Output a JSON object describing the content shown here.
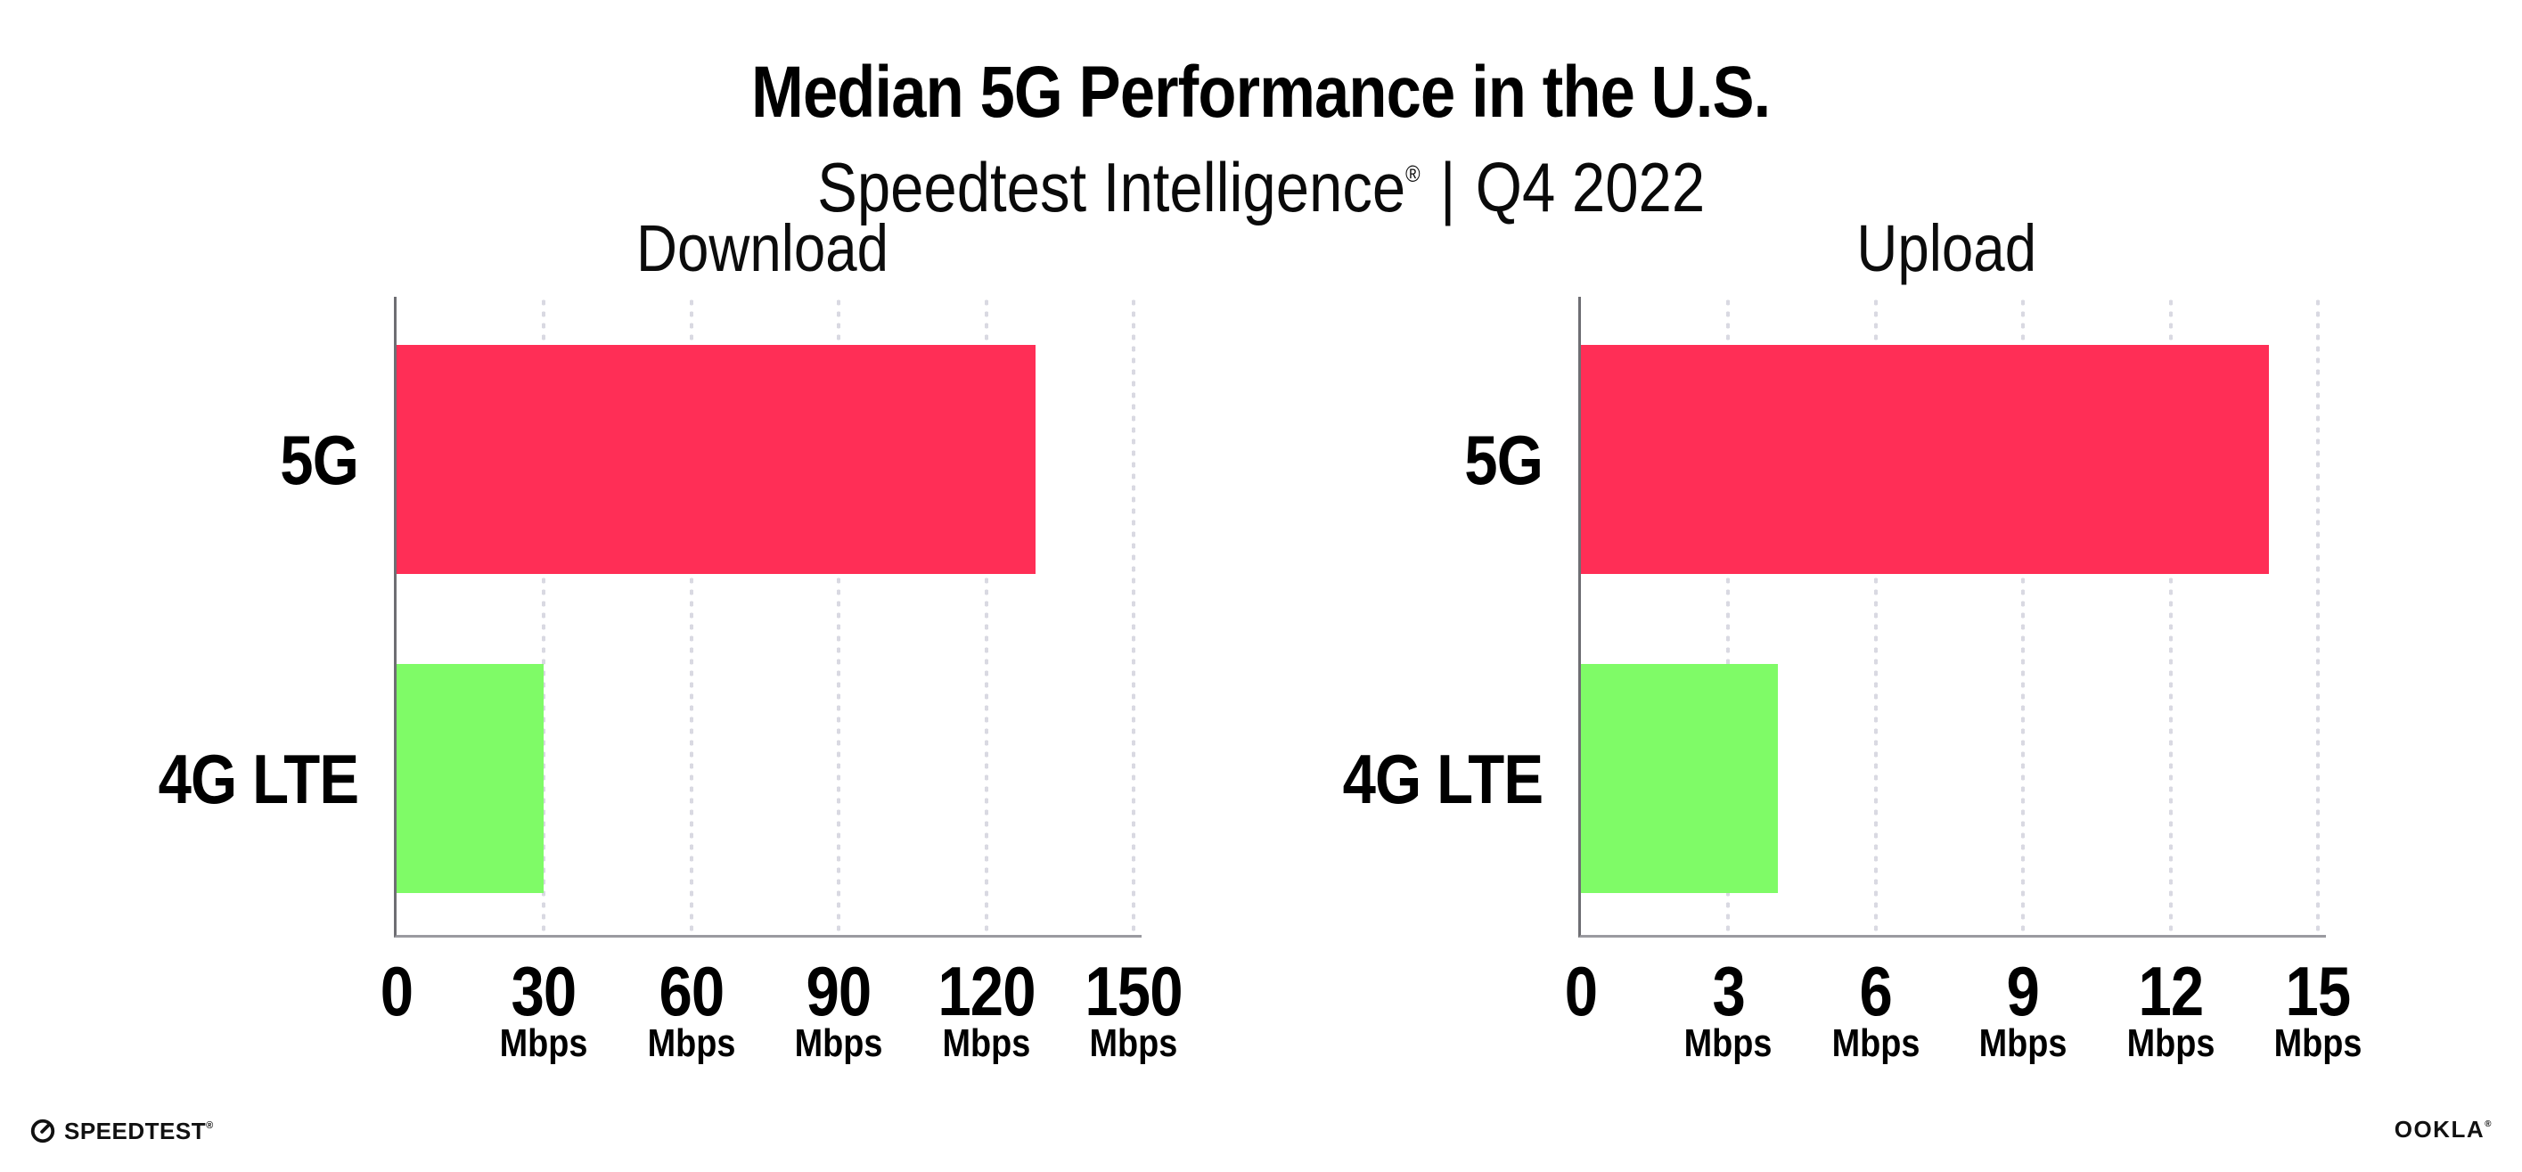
{
  "header": {
    "title": "Median 5G Performance in the U.S.",
    "subtitle_brand": "Speedtest Intelligence",
    "subtitle_reg": "®",
    "subtitle_sep": "|",
    "subtitle_period": "Q4 2022"
  },
  "chart_data": [
    {
      "type": "bar",
      "orientation": "horizontal",
      "title": "Download",
      "categories": [
        "5G",
        "4G LTE"
      ],
      "values": [
        130,
        30
      ],
      "value_unit": "Mbps",
      "xlim": [
        0,
        150
      ],
      "xticks": [
        0,
        30,
        60,
        90,
        120,
        150
      ],
      "xtick_unit": "Mbps",
      "bar_colors": [
        "#FF2E56",
        "#7FFB67"
      ],
      "grid": "dotted vertical gridlines at each x tick",
      "legend": "none"
    },
    {
      "type": "bar",
      "orientation": "horizontal",
      "title": "Upload",
      "categories": [
        "5G",
        "4G LTE"
      ],
      "values": [
        14,
        4
      ],
      "value_unit": "Mbps",
      "xlim": [
        0,
        15
      ],
      "xticks": [
        0,
        3,
        6,
        9,
        12,
        15
      ],
      "xtick_unit": "Mbps",
      "bar_colors": [
        "#FF2E56",
        "#7FFB67"
      ],
      "grid": "dotted vertical gridlines at each x tick",
      "legend": "none"
    }
  ],
  "footer": {
    "speedtest_label": "SPEEDTEST",
    "speedtest_mark": "®",
    "ookla_label": "OOKLA",
    "ookla_mark": "®"
  },
  "colors": {
    "bar_5g": "#FF2E56",
    "bar_4g_lte": "#7FFB67",
    "y_axis": "#6E6E73",
    "x_axis": "#9A9AA0",
    "gridline_dots": "#D9D9E2",
    "text": "#000000"
  }
}
